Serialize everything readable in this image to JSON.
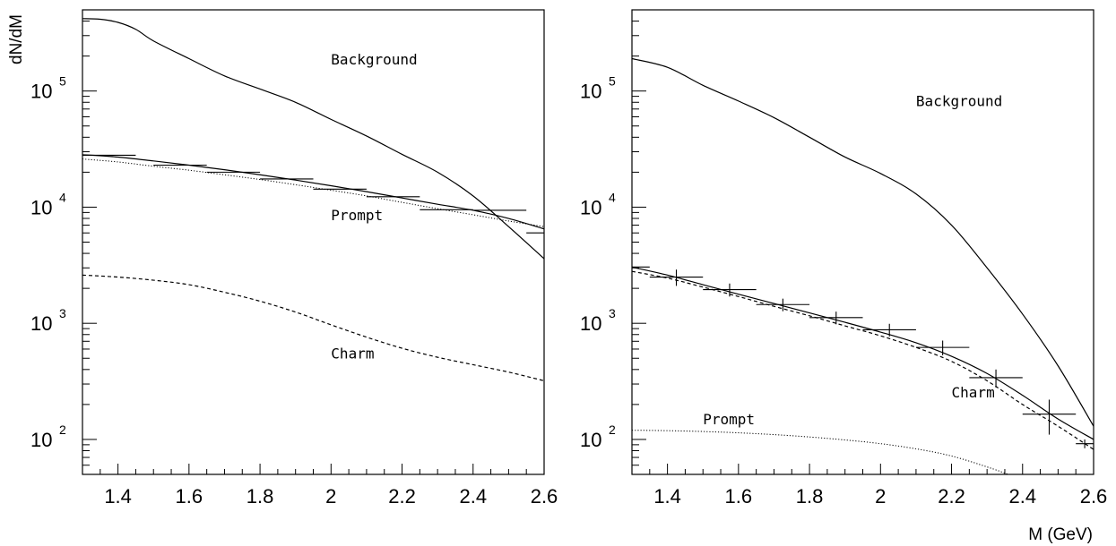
{
  "figure": {
    "y_axis_title": "dN/dM",
    "x_axis_title": "M (GeV)"
  },
  "chart_data": [
    {
      "type": "line",
      "panel": "left",
      "x_scale": "linear",
      "y_scale": "log",
      "xlim": [
        1.3,
        2.6
      ],
      "ylim": [
        50,
        500000
      ],
      "xticks": [
        "1.4",
        "1.6",
        "1.8",
        "2",
        "2.2",
        "2.4",
        "2.6"
      ],
      "yticks": [
        {
          "base": "10",
          "exp": "2",
          "value": 100
        },
        {
          "base": "10",
          "exp": "3",
          "value": 1000
        },
        {
          "base": "10",
          "exp": "4",
          "value": 10000
        },
        {
          "base": "10",
          "exp": "5",
          "value": 100000
        }
      ],
      "ylabel": "dN/dM",
      "xlabel": "",
      "annotations": [
        {
          "text": "Background",
          "x": 2.0,
          "y": 170000
        },
        {
          "text": "Prompt",
          "x": 2.0,
          "y": 7700
        },
        {
          "text": "Charm",
          "x": 2.0,
          "y": 500
        }
      ],
      "series": [
        {
          "role": "background",
          "style": "solid",
          "x": [
            1.3,
            1.35,
            1.4,
            1.45,
            1.5,
            1.6,
            1.7,
            1.8,
            1.9,
            2.0,
            2.1,
            2.2,
            2.3,
            2.4,
            2.5,
            2.6
          ],
          "y": [
            420000,
            415000,
            390000,
            340000,
            270000,
            190000,
            135000,
            104000,
            80000,
            57000,
            41000,
            28500,
            20000,
            12500,
            6800,
            3600
          ]
        },
        {
          "role": "prompt",
          "style": "dotted",
          "x": [
            1.3,
            1.4,
            1.5,
            1.6,
            1.7,
            1.8,
            1.9,
            2.0,
            2.1,
            2.2,
            2.3,
            2.4,
            2.5,
            2.6
          ],
          "y": [
            26000,
            24500,
            22500,
            20800,
            19000,
            17300,
            15600,
            14000,
            12500,
            11000,
            9700,
            8600,
            7600,
            6800
          ]
        },
        {
          "role": "charm",
          "style": "dashed",
          "x": [
            1.3,
            1.4,
            1.5,
            1.6,
            1.7,
            1.8,
            1.9,
            2.0,
            2.1,
            2.2,
            2.3,
            2.4,
            2.5,
            2.6
          ],
          "y": [
            2600,
            2500,
            2350,
            2150,
            1850,
            1550,
            1250,
            970,
            760,
            610,
            510,
            440,
            380,
            320
          ]
        },
        {
          "role": "fit-total",
          "style": "solid",
          "x": [
            1.3,
            1.4,
            1.5,
            1.6,
            1.7,
            1.8,
            1.9,
            2.0,
            2.1,
            2.2,
            2.3,
            2.4,
            2.5,
            2.6
          ],
          "y": [
            28300,
            27000,
            25000,
            23000,
            21000,
            19000,
            17100,
            15300,
            13600,
            12000,
            10600,
            9400,
            8000,
            6500
          ]
        },
        {
          "role": "data",
          "style": "crosses",
          "x": [
            1.375,
            1.575,
            1.725,
            1.875,
            2.025,
            2.175,
            2.325,
            2.475,
            2.575
          ],
          "xerr": [
            0.075,
            0.075,
            0.075,
            0.075,
            0.075,
            0.075,
            0.075,
            0.075,
            0.025
          ],
          "y": [
            28000,
            23000,
            20000,
            17500,
            14300,
            12300,
            9500,
            9400,
            6000
          ],
          "yerr": [
            0,
            0,
            0,
            0,
            0,
            0,
            0,
            0,
            0
          ]
        }
      ]
    },
    {
      "type": "line",
      "panel": "right",
      "x_scale": "linear",
      "y_scale": "log",
      "xlim": [
        1.3,
        2.6
      ],
      "ylim": [
        50,
        500000
      ],
      "xticks": [
        "1.4",
        "1.6",
        "1.8",
        "2",
        "2.2",
        "2.4",
        "2.6"
      ],
      "yticks": [
        {
          "base": "10",
          "exp": "2",
          "value": 100
        },
        {
          "base": "10",
          "exp": "3",
          "value": 1000
        },
        {
          "base": "10",
          "exp": "4",
          "value": 10000
        },
        {
          "base": "10",
          "exp": "5",
          "value": 100000
        }
      ],
      "xlabel": "M (GeV)",
      "ylabel": "",
      "annotations": [
        {
          "text": "Background",
          "x": 2.1,
          "y": 74000
        },
        {
          "text": "Charm",
          "x": 2.2,
          "y": 230
        },
        {
          "text": "Prompt",
          "x": 1.5,
          "y": 135
        }
      ],
      "series": [
        {
          "role": "background",
          "style": "solid",
          "x": [
            1.3,
            1.4,
            1.5,
            1.6,
            1.7,
            1.8,
            1.9,
            2.0,
            2.1,
            2.2,
            2.3,
            2.4,
            2.5,
            2.6
          ],
          "y": [
            190000,
            160000,
            112000,
            82000,
            59000,
            40000,
            27000,
            19500,
            13000,
            7000,
            3000,
            1200,
            430,
            130
          ]
        },
        {
          "role": "prompt",
          "style": "dotted",
          "x": [
            1.3,
            1.4,
            1.5,
            1.6,
            1.7,
            1.8,
            1.9,
            2.0,
            2.1,
            2.2,
            2.3,
            2.36
          ],
          "y": [
            120,
            119,
            117,
            114,
            110,
            105,
            99,
            92,
            83,
            72,
            58,
            50
          ]
        },
        {
          "role": "charm",
          "style": "dashed",
          "x": [
            1.3,
            1.4,
            1.5,
            1.6,
            1.7,
            1.8,
            1.9,
            2.0,
            2.1,
            2.2,
            2.3,
            2.4,
            2.5,
            2.6
          ],
          "y": [
            2800,
            2450,
            2050,
            1700,
            1400,
            1160,
            950,
            780,
            620,
            470,
            320,
            200,
            130,
            82
          ]
        },
        {
          "role": "fit-total",
          "style": "solid",
          "x": [
            1.3,
            1.4,
            1.5,
            1.6,
            1.7,
            1.8,
            1.9,
            2.0,
            2.1,
            2.2,
            2.3,
            2.4,
            2.5,
            2.6
          ],
          "y": [
            3050,
            2600,
            2150,
            1780,
            1480,
            1230,
            1020,
            840,
            680,
            520,
            370,
            240,
            150,
            100
          ]
        },
        {
          "role": "data",
          "style": "crosses",
          "x": [
            1.325,
            1.425,
            1.575,
            1.725,
            1.875,
            2.025,
            2.175,
            2.325,
            2.475,
            2.575
          ],
          "xerr": [
            0.025,
            0.075,
            0.075,
            0.075,
            0.075,
            0.075,
            0.075,
            0.075,
            0.075,
            0.025
          ],
          "y": [
            3050,
            2500,
            1950,
            1450,
            1120,
            880,
            620,
            340,
            165,
            92
          ],
          "yerr": [
            0,
            400,
            250,
            180,
            140,
            110,
            90,
            60,
            55,
            8
          ]
        }
      ]
    }
  ]
}
